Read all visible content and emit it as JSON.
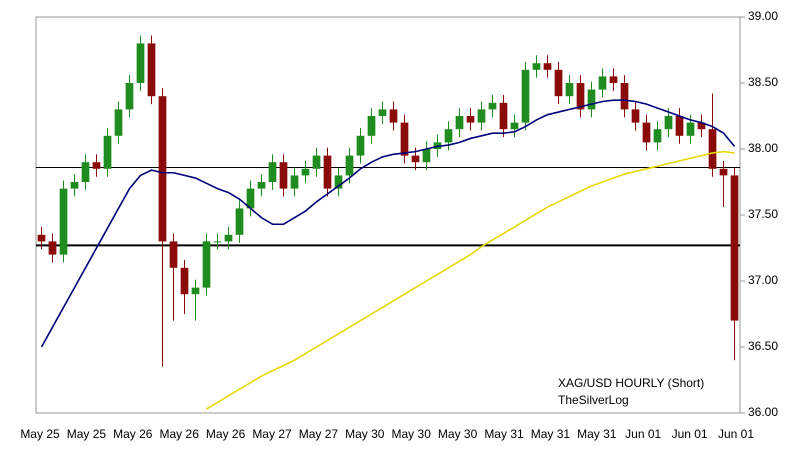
{
  "chart_data": {
    "type": "candlestick",
    "annotations": [
      "XAG/USD HOURLY (Short)",
      "TheSilverLog"
    ],
    "xtick_labels": [
      "May 25",
      "May 25",
      "May 26",
      "May 26",
      "May 26",
      "May 27",
      "May 27",
      "May 30",
      "May 30",
      "May 30",
      "May 31",
      "May 31",
      "May 31",
      "Jun 01",
      "Jun 01",
      "Jun 01"
    ],
    "ylim": [
      36,
      39
    ],
    "yticks": [
      {
        "value": 36,
        "label": "36.00"
      },
      {
        "value": 36.5,
        "label": "36.50"
      },
      {
        "value": 37,
        "label": "37.00"
      },
      {
        "value": 37.5,
        "label": "37.50"
      },
      {
        "value": 38,
        "label": "38.00"
      },
      {
        "value": 38.5,
        "label": "38.50"
      },
      {
        "value": 39,
        "label": "39.00"
      }
    ],
    "up_color": "#1e8c1e",
    "down_color": "#8b0a0a",
    "hlines": [
      37.86,
      37.27
    ],
    "open": [
      37.35,
      37.3,
      37.2,
      37.7,
      37.75,
      37.9,
      37.85,
      38.1,
      38.3,
      38.5,
      38.8,
      38.4,
      37.3,
      37.1,
      36.9,
      36.95,
      37.3,
      37.3,
      37.35,
      37.55,
      37.7,
      37.75,
      37.9,
      37.7,
      37.8,
      37.85,
      37.95,
      37.7,
      37.8,
      37.95,
      38.1,
      38.25,
      38.3,
      38.2,
      37.95,
      37.9,
      38.0,
      38.05,
      38.15,
      38.25,
      38.2,
      38.3,
      38.35,
      38.15,
      38.2,
      38.6,
      38.65,
      38.6,
      38.4,
      38.5,
      38.3,
      38.45,
      38.55,
      38.5,
      38.3,
      38.2,
      38.05,
      38.15,
      38.25,
      38.1,
      38.2,
      38.15,
      37.85,
      37.8
    ],
    "high": [
      37.41,
      37.36,
      37.76,
      37.81,
      37.96,
      37.96,
      38.16,
      38.36,
      38.56,
      38.86,
      38.86,
      38.46,
      37.36,
      37.16,
      37.01,
      37.36,
      37.36,
      37.41,
      37.61,
      37.76,
      37.81,
      37.96,
      37.96,
      37.86,
      37.91,
      38.01,
      38.01,
      37.86,
      38.01,
      38.16,
      38.31,
      38.36,
      38.36,
      38.26,
      38.01,
      38.06,
      38.11,
      38.21,
      38.31,
      38.31,
      38.36,
      38.41,
      38.41,
      38.26,
      38.66,
      38.71,
      38.71,
      38.66,
      38.56,
      38.56,
      38.51,
      38.61,
      38.61,
      38.56,
      38.36,
      38.26,
      38.21,
      38.31,
      38.31,
      38.26,
      38.26,
      38.42,
      37.91,
      37.86
    ],
    "low": [
      37.24,
      37.14,
      37.14,
      37.64,
      37.69,
      37.79,
      37.79,
      38.04,
      38.24,
      38.44,
      38.34,
      36.35,
      36.7,
      36.75,
      36.7,
      36.89,
      37.24,
      37.24,
      37.29,
      37.49,
      37.64,
      37.69,
      37.64,
      37.64,
      37.74,
      37.79,
      37.64,
      37.64,
      37.74,
      37.89,
      38.04,
      38.19,
      38.14,
      37.89,
      37.84,
      37.84,
      37.94,
      37.99,
      38.09,
      38.14,
      38.14,
      38.24,
      38.09,
      38.09,
      38.14,
      38.54,
      38.54,
      38.34,
      38.34,
      38.24,
      38.24,
      38.39,
      38.44,
      38.24,
      38.14,
      37.99,
      37.99,
      38.09,
      38.04,
      38.04,
      38.09,
      37.79,
      37.56,
      36.4
    ],
    "close": [
      37.3,
      37.2,
      37.7,
      37.75,
      37.9,
      37.85,
      38.1,
      38.3,
      38.5,
      38.8,
      38.4,
      37.3,
      37.1,
      36.9,
      36.95,
      37.3,
      37.3,
      37.35,
      37.55,
      37.7,
      37.75,
      37.9,
      37.7,
      37.8,
      37.85,
      37.95,
      37.7,
      37.8,
      37.95,
      38.1,
      38.25,
      38.3,
      38.2,
      37.95,
      37.9,
      38.0,
      38.05,
      38.15,
      38.25,
      38.2,
      38.3,
      38.35,
      38.15,
      38.2,
      38.6,
      38.65,
      38.6,
      38.4,
      38.5,
      38.3,
      38.45,
      38.55,
      38.5,
      38.3,
      38.2,
      38.05,
      38.15,
      38.25,
      38.1,
      38.2,
      38.15,
      37.85,
      37.8,
      36.7
    ],
    "series": [
      {
        "color": "#00007a",
        "values": [
          36.5,
          36.65,
          36.8,
          36.95,
          37.1,
          37.25,
          37.4,
          37.55,
          37.7,
          37.8,
          37.84,
          37.82,
          37.82,
          37.8,
          37.78,
          37.74,
          37.7,
          37.67,
          37.62,
          37.55,
          37.48,
          37.43,
          37.43,
          37.48,
          37.53,
          37.6,
          37.66,
          37.72,
          37.78,
          37.85,
          37.9,
          37.94,
          37.96,
          37.97,
          37.98,
          38.0,
          38.02,
          38.03,
          38.05,
          38.08,
          38.1,
          38.12,
          38.12,
          38.13,
          38.17,
          38.22,
          38.26,
          38.28,
          38.3,
          38.32,
          38.34,
          38.36,
          38.37,
          38.37,
          38.36,
          38.34,
          38.31,
          38.28,
          38.25,
          38.22,
          38.2,
          38.17,
          38.12,
          38.02
        ]
      },
      {
        "color": "#e6d800",
        "values": [
          null,
          null,
          null,
          null,
          null,
          null,
          null,
          null,
          null,
          null,
          null,
          null,
          null,
          null,
          null,
          36.03,
          36.08,
          36.13,
          36.18,
          36.23,
          36.28,
          36.32,
          36.36,
          36.4,
          36.45,
          36.5,
          36.55,
          36.6,
          36.65,
          36.7,
          36.75,
          36.8,
          36.85,
          36.9,
          36.95,
          37.0,
          37.05,
          37.1,
          37.15,
          37.2,
          37.26,
          37.31,
          37.36,
          37.41,
          37.46,
          37.51,
          37.56,
          37.6,
          37.64,
          37.68,
          37.72,
          37.75,
          37.78,
          37.81,
          37.83,
          37.85,
          37.87,
          37.89,
          37.91,
          37.93,
          37.95,
          37.97,
          37.98,
          37.97
        ]
      }
    ]
  }
}
